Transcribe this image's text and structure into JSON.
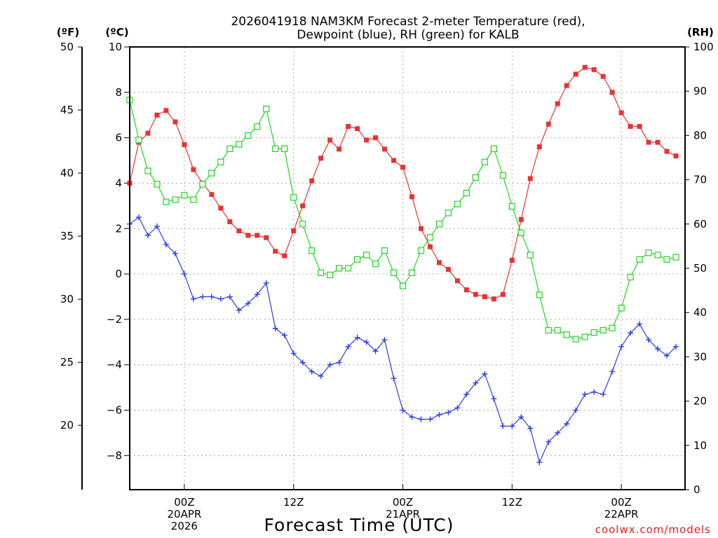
{
  "chart_data": {
    "type": "line",
    "title_line1": "2026041918 NAM3KM Forecast 2-meter Temperature (red),",
    "title_line2": "Dewpoint (blue), RH (green) for KALB",
    "unit_f": "(ºF)",
    "unit_c": "(ºC)",
    "unit_rh": "(RH)",
    "xlabel": "Forecast Time (UTC)",
    "credit": "coolwx.com/models",
    "x_hours_from_start": {
      "start": 0,
      "end": 61
    },
    "x_ticks": [
      {
        "hour": 6,
        "line1": "00Z",
        "line2": "20APR",
        "line3": "2026"
      },
      {
        "hour": 18,
        "line1": "12Z",
        "line2": "",
        "line3": ""
      },
      {
        "hour": 30,
        "line1": "00Z",
        "line2": "21APR",
        "line3": ""
      },
      {
        "hour": 42,
        "line1": "12Z",
        "line2": "",
        "line3": ""
      },
      {
        "hour": 54,
        "line1": "00Z",
        "line2": "22APR",
        "line3": ""
      }
    ],
    "c_axis": {
      "range": [
        -9.5,
        10
      ],
      "ticks": [
        10,
        8,
        6,
        4,
        2,
        0,
        -2,
        -4,
        -6,
        -8
      ],
      "labels": [
        "10",
        "8",
        "6",
        "4",
        "2",
        "0",
        "−2",
        "−4",
        "−6",
        "−8"
      ]
    },
    "f_axis": {
      "ticks": [
        50,
        45,
        40,
        35,
        30,
        25,
        20
      ],
      "labels": [
        "50",
        "45",
        "40",
        "35",
        "30",
        "25",
        "20"
      ]
    },
    "rh_axis": {
      "range": [
        0,
        100
      ],
      "ticks": [
        100,
        90,
        80,
        70,
        60,
        50,
        40,
        30,
        20,
        10,
        0
      ],
      "labels": [
        "100",
        "90",
        "80",
        "70",
        "60",
        "50",
        "40",
        "30",
        "20",
        "10",
        "0"
      ]
    },
    "series": [
      {
        "name": "2-meter Temperature",
        "axis": "celsius",
        "color": "#e83232",
        "marker": "filled-square",
        "values": [
          4.0,
          5.8,
          6.2,
          7.0,
          7.2,
          6.7,
          5.7,
          4.6,
          4.0,
          3.5,
          2.9,
          2.3,
          1.9,
          1.7,
          1.7,
          1.6,
          1.0,
          0.8,
          1.9,
          3.0,
          4.1,
          5.1,
          5.9,
          5.5,
          6.5,
          6.4,
          5.9,
          6.0,
          5.5,
          5.0,
          4.7,
          3.4,
          2.0,
          1.2,
          0.5,
          0.2,
          -0.3,
          -0.7,
          -0.9,
          -1.0,
          -1.1,
          -0.9,
          0.6,
          2.4,
          4.2,
          5.6,
          6.6,
          7.5,
          8.3,
          8.8,
          9.1,
          9.0,
          8.7,
          8.0,
          7.1,
          6.5,
          6.5,
          5.8,
          5.8,
          5.4,
          5.2
        ]
      },
      {
        "name": "Dewpoint",
        "axis": "celsius",
        "color": "#2e3ee0",
        "marker": "plus",
        "values": [
          2.2,
          2.5,
          1.7,
          2.1,
          1.3,
          0.9,
          0.0,
          -1.1,
          -1.0,
          -1.0,
          -1.1,
          -1.0,
          -1.6,
          -1.3,
          -0.9,
          -0.4,
          -2.4,
          -2.7,
          -3.5,
          -3.9,
          -4.3,
          -4.5,
          -4.0,
          -3.9,
          -3.2,
          -2.8,
          -3.0,
          -3.4,
          -2.9,
          -4.6,
          -6.0,
          -6.3,
          -6.4,
          -6.4,
          -6.2,
          -6.1,
          -5.9,
          -5.3,
          -4.8,
          -4.4,
          -5.5,
          -6.7,
          -6.7,
          -6.3,
          -6.8,
          -8.3,
          -7.4,
          -7.0,
          -6.6,
          -6.0,
          -5.3,
          -5.2,
          -5.3,
          -4.3,
          -3.2,
          -2.6,
          -2.2,
          -2.9,
          -3.3,
          -3.6,
          -3.2
        ]
      },
      {
        "name": "RH",
        "axis": "rh",
        "color": "#22d422",
        "marker": "open-square",
        "values": [
          88,
          79,
          72,
          69,
          65,
          65.5,
          66.5,
          65.5,
          69,
          71.5,
          74,
          77,
          78,
          80,
          82,
          86,
          77,
          77,
          66,
          60,
          54,
          49,
          48.5,
          50,
          50,
          52,
          53,
          51,
          54,
          49,
          46,
          49,
          54,
          57,
          60,
          62.5,
          64.5,
          67,
          70.5,
          74,
          77,
          71,
          64,
          58,
          53,
          44,
          36,
          36,
          35,
          34,
          34.5,
          35.5,
          36,
          36.5,
          41,
          48,
          52,
          53.5,
          53,
          52,
          52.5
        ]
      }
    ]
  }
}
